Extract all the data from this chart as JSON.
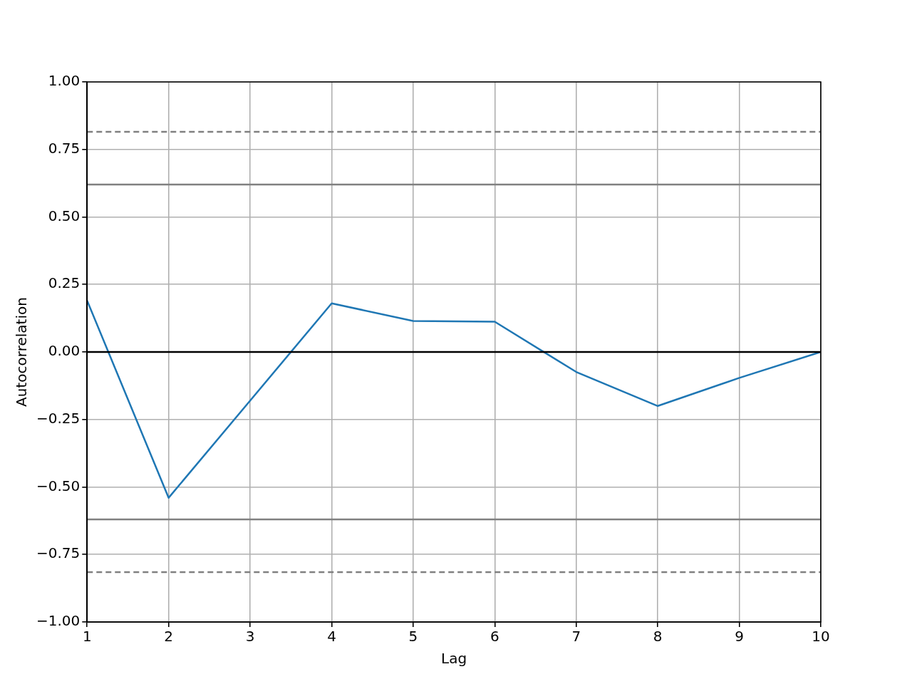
{
  "chart_data": {
    "type": "line",
    "xlabel": "Lag",
    "ylabel": "Autocorrelation",
    "x": [
      1,
      2,
      3,
      4,
      5,
      6,
      7,
      8,
      9,
      10
    ],
    "series": [
      {
        "color": "#1f77b4",
        "values": [
          0.19,
          -0.54,
          -0.18,
          0.18,
          0.115,
          0.112,
          -0.074,
          -0.2,
          -0.096,
          0
        ]
      }
    ],
    "xlim": [
      1,
      10
    ],
    "xticks": [
      1,
      2,
      3,
      4,
      5,
      6,
      7,
      8,
      9,
      10
    ],
    "ylim": [
      -1,
      1
    ],
    "yticks": [
      {
        "value": -1,
        "label": "−1.00"
      },
      {
        "value": -0.75,
        "label": "−0.75"
      },
      {
        "value": -0.5,
        "label": "−0.50"
      },
      {
        "value": -0.25,
        "label": "−0.25"
      },
      {
        "value": 0,
        "label": "0.00"
      },
      {
        "value": 0.25,
        "label": "0.25"
      },
      {
        "value": 0.5,
        "label": "0.50"
      },
      {
        "value": 0.75,
        "label": "0.75"
      },
      {
        "value": 1,
        "label": "1.00"
      }
    ],
    "ref_lines": [
      {
        "axis": "y",
        "value": 0.815,
        "color": "#808080",
        "line_style": "dashed"
      },
      {
        "axis": "y",
        "value": 0.62,
        "color": "#808080",
        "line_style": "solid"
      },
      {
        "axis": "y",
        "value": 0,
        "color": "#000000",
        "line_style": "solid"
      },
      {
        "axis": "y",
        "value": -0.62,
        "color": "#808080",
        "line_style": "solid"
      },
      {
        "axis": "y",
        "value": -0.815,
        "color": "#808080",
        "line_style": "dashed"
      }
    ],
    "grid": true,
    "legend": false,
    "marker": "none",
    "line_style": "solid"
  }
}
